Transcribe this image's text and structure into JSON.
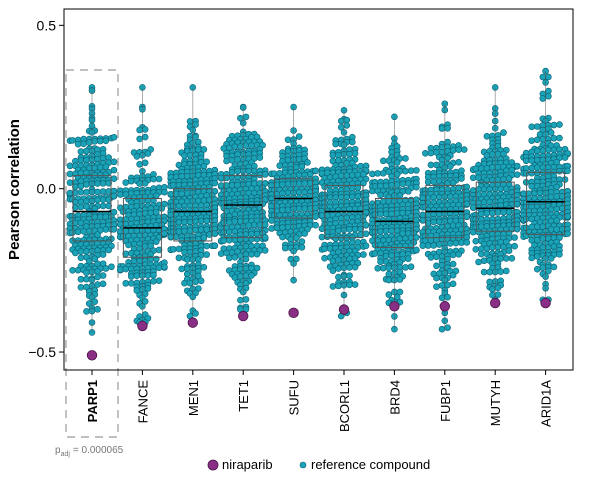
{
  "chart_data": {
    "type": "box",
    "ylabel": "Pearson correlation",
    "ylim": [
      -0.555,
      0.55
    ],
    "yticks": [
      -0.5,
      0.0,
      0.5
    ],
    "ytick_labels": [
      "−0.5",
      "0.0",
      "0.5"
    ],
    "categories": [
      "PARP1",
      "FANCE",
      "MEN1",
      "TET1",
      "SUFU",
      "BCORL1",
      "BRD4",
      "FUBP1",
      "MUTYH",
      "ARID1A"
    ],
    "highlighted_category": "PARP1",
    "padj_label": "p",
    "padj_sub": "adj",
    "padj_value": "= 0.000065",
    "boxes": [
      {
        "gene": "PARP1",
        "q1": -0.16,
        "median": -0.07,
        "q3": 0.04,
        "min": -0.44,
        "max": 0.31,
        "n": 260
      },
      {
        "gene": "FANCE",
        "q1": -0.21,
        "median": -0.12,
        "q3": -0.03,
        "min": -0.41,
        "max": 0.31,
        "n": 230
      },
      {
        "gene": "MEN1",
        "q1": -0.16,
        "median": -0.07,
        "q3": 0.0,
        "min": -0.39,
        "max": 0.31,
        "n": 300
      },
      {
        "gene": "TET1",
        "q1": -0.15,
        "median": -0.05,
        "q3": 0.04,
        "min": -0.37,
        "max": 0.25,
        "n": 280
      },
      {
        "gene": "SUFU",
        "q1": -0.09,
        "median": -0.03,
        "q3": 0.03,
        "min": -0.28,
        "max": 0.25,
        "n": 230
      },
      {
        "gene": "BCORL1",
        "q1": -0.15,
        "median": -0.07,
        "q3": 0.01,
        "min": -0.39,
        "max": 0.24,
        "n": 280
      },
      {
        "gene": "BRD4",
        "q1": -0.18,
        "median": -0.1,
        "q3": -0.03,
        "min": -0.43,
        "max": 0.22,
        "n": 250
      },
      {
        "gene": "FUBP1",
        "q1": -0.15,
        "median": -0.07,
        "q3": 0.01,
        "min": -0.43,
        "max": 0.26,
        "n": 260
      },
      {
        "gene": "MUTYH",
        "q1": -0.13,
        "median": -0.06,
        "q3": 0.02,
        "min": -0.34,
        "max": 0.31,
        "n": 260
      },
      {
        "gene": "ARID1A",
        "q1": -0.14,
        "median": -0.04,
        "q3": 0.05,
        "min": -0.34,
        "max": 0.36,
        "n": 280
      }
    ],
    "niraparib": [
      {
        "gene": "PARP1",
        "value": -0.51
      },
      {
        "gene": "FANCE",
        "value": -0.42
      },
      {
        "gene": "MEN1",
        "value": -0.41
      },
      {
        "gene": "TET1",
        "value": -0.39
      },
      {
        "gene": "SUFU",
        "value": -0.38
      },
      {
        "gene": "BCORL1",
        "value": -0.37
      },
      {
        "gene": "BRD4",
        "value": -0.36
      },
      {
        "gene": "FUBP1",
        "value": -0.36
      },
      {
        "gene": "MUTYH",
        "value": -0.35
      },
      {
        "gene": "ARID1A",
        "value": -0.35
      }
    ],
    "legend": {
      "placement": "bottom-center",
      "entries": [
        {
          "label": "niraparib",
          "color": "#8a2f86",
          "marker": "large-circle"
        },
        {
          "label": "reference compound",
          "color": "#1aa3b7",
          "marker": "small-circle"
        }
      ]
    },
    "colors": {
      "niraparib": "#8a2f86",
      "reference": "#1aa3b7",
      "reference_edge": "#0c5f73",
      "box": "#555555",
      "highlight_box": "#999999"
    }
  }
}
